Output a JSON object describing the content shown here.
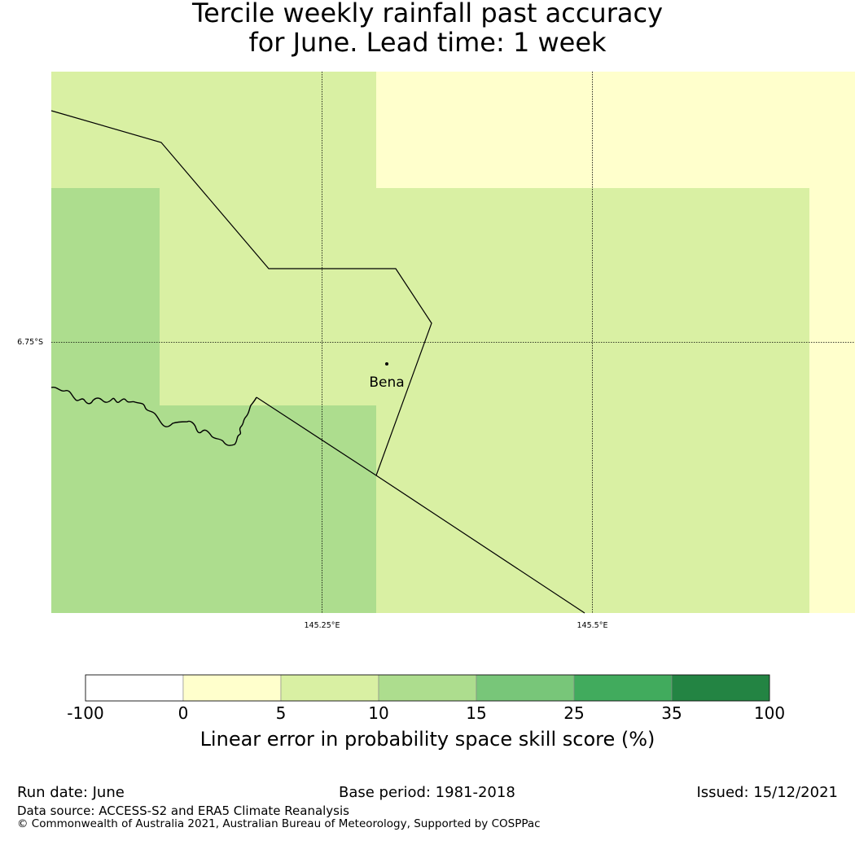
{
  "title": {
    "line1": "Tercile weekly rainfall past accuracy",
    "line2": "for June. Lead time: 1 week"
  },
  "map": {
    "grid_labels": {
      "lat_1": "6.75°S",
      "lon_1": "145.25°E",
      "lon_2": "145.5°E"
    },
    "place": {
      "name": "Bena"
    },
    "category_colors": {
      "cat_0_5": "#ffffcc",
      "cat_5_10": "#d9f0a3",
      "cat_10_15": "#addd8e"
    }
  },
  "colorbar": {
    "label": "Linear error in probability space skill score (%)",
    "ticks": [
      "-100",
      "0",
      "5",
      "10",
      "15",
      "25",
      "35",
      "100"
    ],
    "colors": [
      "#ffffff",
      "#ffffcc",
      "#d9f0a3",
      "#addd8e",
      "#78c679",
      "#41ab5d",
      "#238443"
    ]
  },
  "footer": {
    "run_date": "Run date: June",
    "base_period": "Base period: 1981-2018",
    "issued": "Issued: 15/12/2021",
    "data_source": "Data source: ACCESS-S2 and ERA5 Climate Reanalysis",
    "copyright": "© Commonwealth of Australia 2021, Australian Bureau of Meteorology, Supported by COSPPac"
  }
}
